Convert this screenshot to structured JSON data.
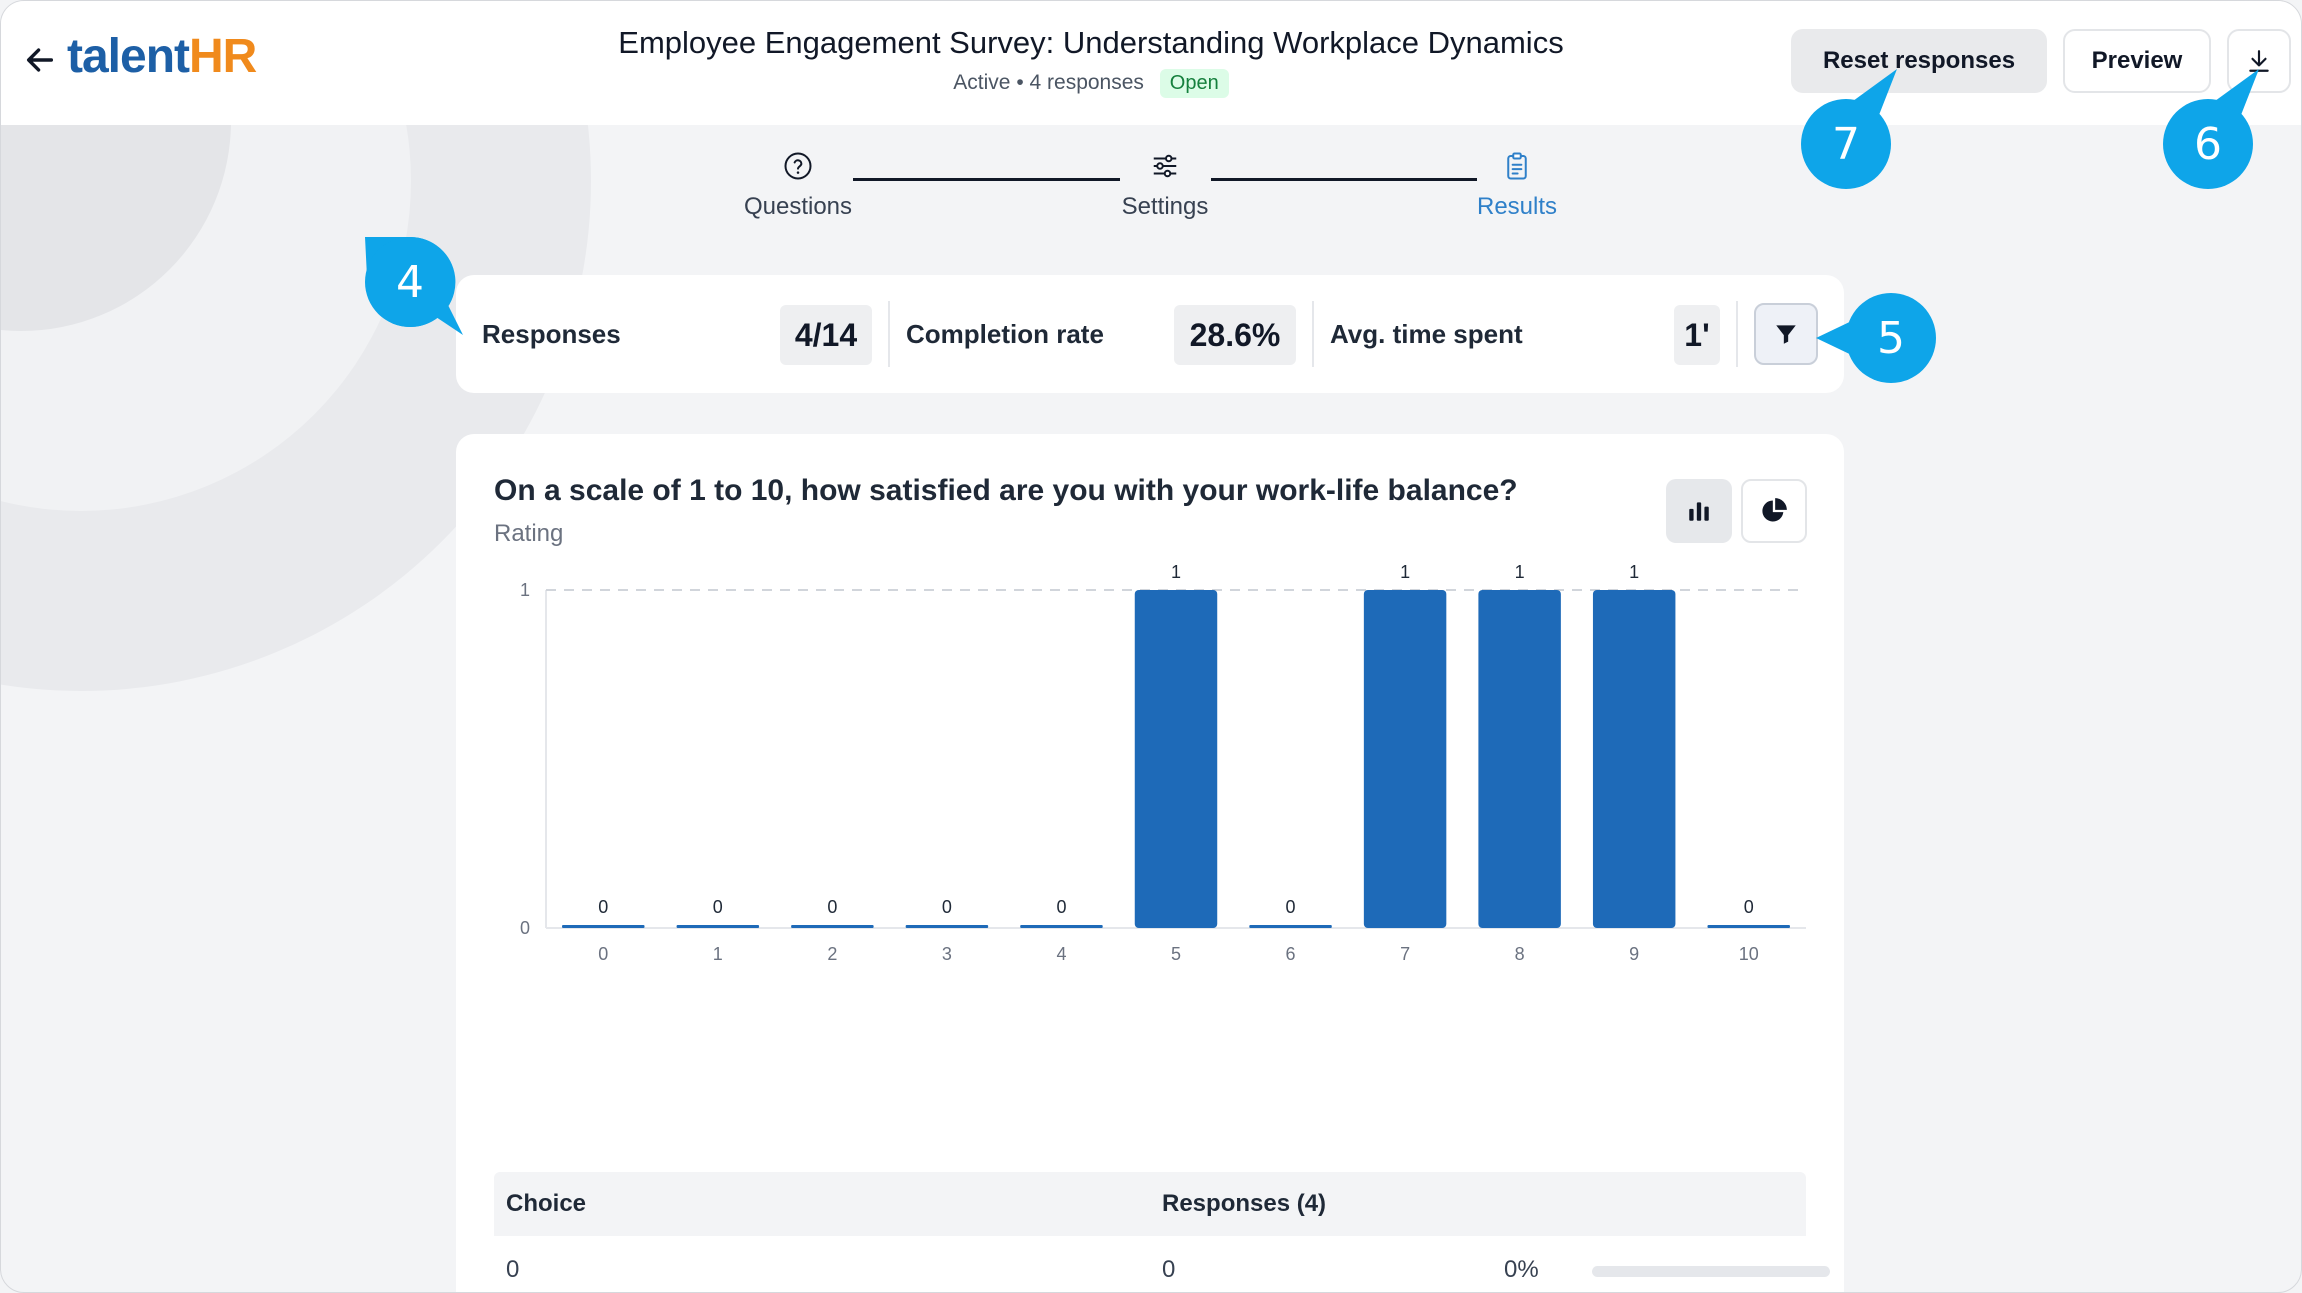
{
  "header": {
    "logo_part1": "talent",
    "logo_part2": "HR",
    "title": "Employee Engagement Survey: Understanding Workplace Dynamics",
    "status": "Active",
    "responses_text": "4 responses",
    "badge": "Open",
    "reset_label": "Reset responses",
    "preview_label": "Preview"
  },
  "steps": [
    "Questions",
    "Settings",
    "Results"
  ],
  "active_step": "Results",
  "stats": {
    "responses_label": "Responses",
    "responses_value": "4/14",
    "completion_label": "Completion rate",
    "completion_value": "28.6%",
    "time_label": "Avg. time spent",
    "time_value": "1'"
  },
  "question": {
    "title": "On a scale of 1 to 10, how satisfied are you with your work-life balance?",
    "type": "Rating"
  },
  "chart_data": {
    "type": "bar",
    "categories": [
      "0",
      "1",
      "2",
      "3",
      "4",
      "5",
      "6",
      "7",
      "8",
      "9",
      "10"
    ],
    "values": [
      0,
      0,
      0,
      0,
      0,
      1,
      0,
      1,
      1,
      1,
      0
    ],
    "ylim": [
      0,
      1
    ],
    "yticks": [
      0,
      1
    ],
    "grid": "dashed line at max",
    "color": "#1e6ab8"
  },
  "table": {
    "col_choice": "Choice",
    "col_responses": "Responses (4)",
    "rows": [
      {
        "choice": "0",
        "count": "0",
        "percent": "0%",
        "fraction": 0
      }
    ]
  },
  "callouts": [
    "4",
    "5",
    "6",
    "7"
  ],
  "colors": {
    "accent": "#1e6ab8",
    "callout": "#0ea5e9",
    "brand_orange": "#f08a1c",
    "brand_blue": "#1d5fa6"
  }
}
